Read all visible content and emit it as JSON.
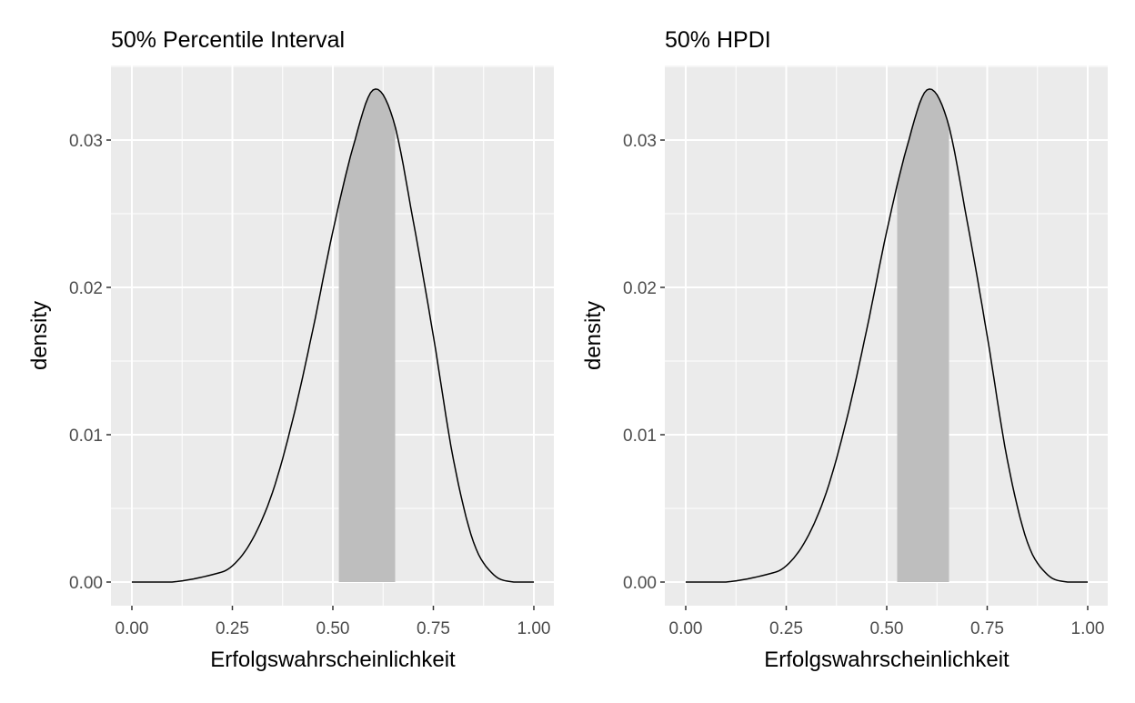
{
  "chart_data": [
    {
      "type": "area",
      "title": "50% Percentile Interval",
      "xlabel": "Erfolgswahrscheinlichkeit",
      "ylabel": "density",
      "xlim": [
        0,
        1
      ],
      "ylim": [
        0,
        0.0335
      ],
      "x_ticks": [
        0,
        0.25,
        0.5,
        0.75,
        1
      ],
      "x_tick_labels": [
        "0.00",
        "0.25",
        "0.50",
        "0.75",
        "1.00"
      ],
      "y_ticks": [
        0,
        0.01,
        0.02,
        0.03
      ],
      "y_tick_labels": [
        "0.00",
        "0.01",
        "0.02",
        "0.03"
      ],
      "grid": true,
      "curve": {
        "x": [
          0,
          0.1,
          0.2,
          0.25,
          0.3,
          0.35,
          0.4,
          0.45,
          0.5,
          0.55,
          0.6,
          0.65,
          0.7,
          0.75,
          0.8,
          0.85,
          0.9,
          0.95,
          1.0
        ],
        "y": [
          0,
          0.0,
          0.0005,
          0.0011,
          0.0029,
          0.0061,
          0.011,
          0.0171,
          0.0238,
          0.0295,
          0.0334,
          0.0314,
          0.0245,
          0.0167,
          0.0083,
          0.0027,
          0.0005,
          0.0,
          0
        ]
      },
      "interval": {
        "lower": 0.515,
        "upper": 0.655
      },
      "colors": {
        "curve": "#000000",
        "interval": "#bebebe",
        "panel": "#ebebeb",
        "grid": "#ffffff"
      }
    },
    {
      "type": "area",
      "title": "50% HPDI",
      "xlabel": "Erfolgswahrscheinlichkeit",
      "ylabel": "density",
      "xlim": [
        0,
        1
      ],
      "ylim": [
        0,
        0.0335
      ],
      "x_ticks": [
        0,
        0.25,
        0.5,
        0.75,
        1
      ],
      "x_tick_labels": [
        "0.00",
        "0.25",
        "0.50",
        "0.75",
        "1.00"
      ],
      "y_ticks": [
        0,
        0.01,
        0.02,
        0.03
      ],
      "y_tick_labels": [
        "0.00",
        "0.01",
        "0.02",
        "0.03"
      ],
      "grid": true,
      "curve": {
        "x": [
          0,
          0.1,
          0.2,
          0.25,
          0.3,
          0.35,
          0.4,
          0.45,
          0.5,
          0.55,
          0.6,
          0.65,
          0.7,
          0.75,
          0.8,
          0.85,
          0.9,
          0.95,
          1.0
        ],
        "y": [
          0,
          0.0,
          0.0005,
          0.0011,
          0.0029,
          0.0061,
          0.011,
          0.0171,
          0.0238,
          0.0295,
          0.0334,
          0.0314,
          0.0245,
          0.0167,
          0.0083,
          0.0027,
          0.0005,
          0.0,
          0
        ]
      },
      "interval": {
        "lower": 0.526,
        "upper": 0.655
      },
      "colors": {
        "curve": "#000000",
        "interval": "#bebebe",
        "panel": "#ebebeb",
        "grid": "#ffffff"
      }
    }
  ]
}
